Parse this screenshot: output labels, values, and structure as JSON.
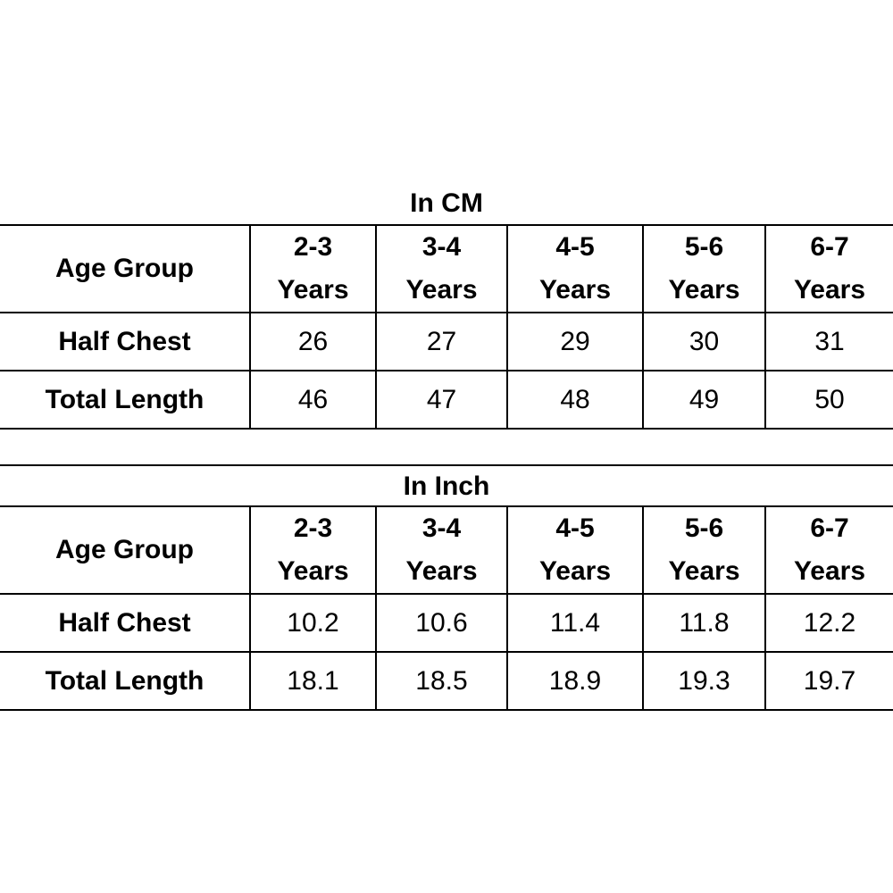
{
  "tables": [
    {
      "title": "In CM",
      "header_label": "Age Group",
      "age_groups": [
        {
          "range": "2-3",
          "unit": "Years"
        },
        {
          "range": "3-4",
          "unit": "Years"
        },
        {
          "range": "4-5",
          "unit": "Years"
        },
        {
          "range": "5-6",
          "unit": "Years"
        },
        {
          "range": "6-7",
          "unit": "Years"
        }
      ],
      "rows": [
        {
          "label": "Half Chest",
          "values": [
            "26",
            "27",
            "29",
            "30",
            "31"
          ]
        },
        {
          "label": "Total Length",
          "values": [
            "46",
            "47",
            "48",
            "49",
            "50"
          ]
        }
      ]
    },
    {
      "title": "In Inch",
      "header_label": "Age Group",
      "age_groups": [
        {
          "range": "2-3",
          "unit": "Years"
        },
        {
          "range": "3-4",
          "unit": "Years"
        },
        {
          "range": "4-5",
          "unit": "Years"
        },
        {
          "range": "5-6",
          "unit": "Years"
        },
        {
          "range": "6-7",
          "unit": "Years"
        }
      ],
      "rows": [
        {
          "label": "Half Chest",
          "values": [
            "10.2",
            "10.6",
            "11.4",
            "11.8",
            "12.2"
          ]
        },
        {
          "label": "Total Length",
          "values": [
            "18.1",
            "18.5",
            "18.9",
            "19.3",
            "19.7"
          ]
        }
      ]
    }
  ]
}
